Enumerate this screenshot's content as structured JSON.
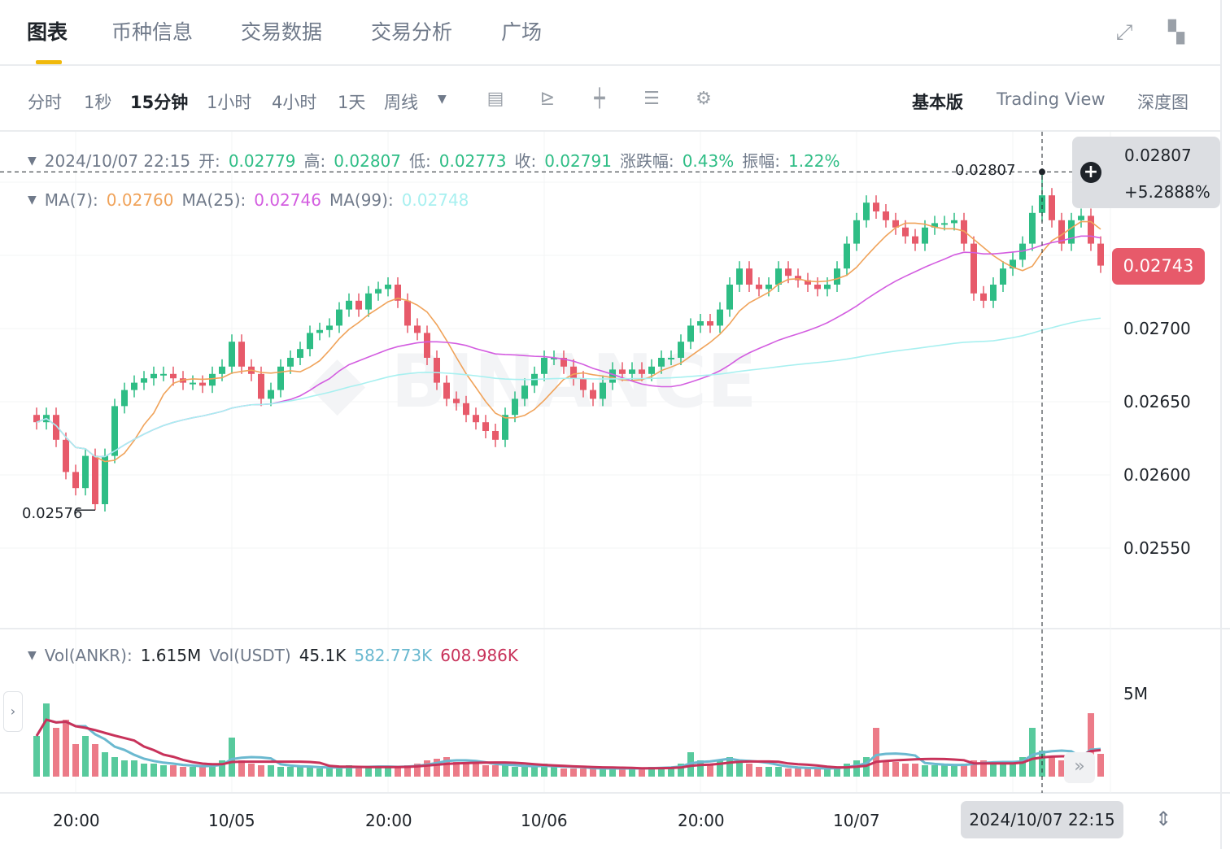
{
  "tabs": [
    {
      "label": "图表",
      "active": true
    },
    {
      "label": "币种信息"
    },
    {
      "label": "交易数据"
    },
    {
      "label": "交易分析"
    },
    {
      "label": "广场"
    }
  ],
  "top_icons": [
    "expand-icon",
    "widgets-icon"
  ],
  "accent_color": "#f0b90b",
  "intervals": [
    {
      "label": "分时"
    },
    {
      "label": "1秒"
    },
    {
      "label": "15分钟",
      "active": true
    },
    {
      "label": "1小时"
    },
    {
      "label": "4小时"
    },
    {
      "label": "1天"
    },
    {
      "label": "周线"
    }
  ],
  "tools": [
    "calendar-icon",
    "drawing-icon",
    "candle-type-icon",
    "indicator-icon",
    "gear-icon"
  ],
  "views": [
    {
      "label": "基本版",
      "active": true
    },
    {
      "label": "Trading View"
    },
    {
      "label": "深度图"
    }
  ],
  "ohlc": {
    "date": "2024/10/07 22:15",
    "open_label": "开:",
    "open": "0.02779",
    "high_label": "高:",
    "high": "0.02807",
    "low_label": "低:",
    "low": "0.02773",
    "close_label": "收:",
    "close": "0.02791",
    "change_label": "涨跌幅:",
    "change": "0.43%",
    "amp_label": "振幅:",
    "amp": "1.22%"
  },
  "ma": {
    "ma7_label": "MA(7):",
    "ma7": "0.02760",
    "ma25_label": "MA(25):",
    "ma25": "0.02746",
    "ma99_label": "MA(99):",
    "ma99": "0.02748"
  },
  "vol": {
    "label1": "Vol(ANKR):",
    "v1": "1.615M",
    "label2": "Vol(USDT)",
    "v2": "45.1K",
    "v3": "582.773K",
    "v4": "608.986K"
  },
  "colors": {
    "up": "#2ebd85",
    "down": "#e75a6a",
    "ma7": "#f0a35a",
    "ma25": "#d35de0",
    "ma99": "#a8f0f0",
    "vol_ma1": "#6bb9d0",
    "vol_ma2": "#c8325a"
  },
  "tooltip": {
    "price": "0.02807",
    "pct": "+5.2888%"
  },
  "current_price": "0.02743",
  "high_marker": "0.02807",
  "low_marker": "0.02576",
  "watermark": "BINANCE",
  "chart_data": {
    "type": "candlestick",
    "interval": "15m",
    "price_ticks": [
      "0.02700",
      "0.02650",
      "0.02600",
      "0.02550"
    ],
    "volume_ticks": [
      "5M"
    ],
    "time_ticks": [
      "20:00",
      "10/05",
      "20:00",
      "10/06",
      "20:00",
      "10/07"
    ],
    "crosshair_time": "2024/10/07 22:15",
    "grid": true,
    "closes": [
      0.02636,
      0.02641,
      0.02624,
      0.02602,
      0.02591,
      0.02613,
      0.0258,
      0.02613,
      0.02647,
      0.02658,
      0.02663,
      0.02666,
      0.02669,
      0.02669,
      0.02666,
      0.02663,
      0.02663,
      0.02661,
      0.02669,
      0.02674,
      0.02691,
      0.02674,
      0.02669,
      0.02652,
      0.02658,
      0.02674,
      0.0268,
      0.02686,
      0.02697,
      0.02699,
      0.02702,
      0.02713,
      0.02719,
      0.02713,
      0.02724,
      0.02727,
      0.0273,
      0.02719,
      0.02702,
      0.02697,
      0.0268,
      0.02663,
      0.02652,
      0.02649,
      0.02641,
      0.02636,
      0.0263,
      0.02624,
      0.02641,
      0.02652,
      0.02661,
      0.02669,
      0.0268,
      0.0268,
      0.02674,
      0.02666,
      0.02658,
      0.02652,
      0.02663,
      0.02672,
      0.02669,
      0.02672,
      0.02669,
      0.02674,
      0.0268,
      0.0268,
      0.02691,
      0.02702,
      0.02705,
      0.02702,
      0.02713,
      0.0273,
      0.02741,
      0.0273,
      0.02727,
      0.0273,
      0.02741,
      0.02736,
      0.02733,
      0.0273,
      0.02727,
      0.0273,
      0.02741,
      0.02758,
      0.02774,
      0.02786,
      0.0278,
      0.02774,
      0.02769,
      0.02763,
      0.02758,
      0.02769,
      0.02772,
      0.02772,
      0.02774,
      0.02758,
      0.02724,
      0.02719,
      0.0273,
      0.02741,
      0.02747,
      0.02758,
      0.02779,
      0.02791,
      0.02774,
      0.02758,
      0.02774,
      0.02777,
      0.02758,
      0.02743
    ],
    "highlight_index": 103,
    "highlight_candle": {
      "open": 0.02779,
      "high": 0.02807,
      "low": 0.02773,
      "close": 0.02791
    },
    "low_point": {
      "index": 6,
      "value": 0.02576
    },
    "volumes_m": [
      2.5,
      4.5,
      3,
      3.5,
      2,
      2.5,
      2,
      1.5,
      1.2,
      1,
      1,
      0.8,
      0.8,
      0.7,
      0.7,
      0.6,
      0.6,
      0.6,
      0.8,
      1,
      2.4,
      1,
      0.8,
      0.7,
      0.7,
      0.6,
      0.6,
      0.6,
      0.6,
      0.5,
      0.5,
      0.6,
      0.7,
      0.6,
      0.6,
      0.6,
      0.6,
      0.6,
      0.7,
      0.8,
      1,
      1.1,
      1.2,
      0.9,
      0.8,
      0.8,
      0.7,
      0.7,
      0.7,
      0.6,
      0.6,
      0.6,
      0.8,
      0.6,
      0.5,
      0.5,
      0.5,
      0.5,
      0.5,
      0.5,
      0.5,
      0.5,
      0.5,
      0.6,
      0.6,
      0.6,
      0.8,
      1.5,
      1,
      0.8,
      1,
      1.2,
      1,
      0.8,
      0.6,
      0.6,
      0.6,
      0.5,
      0.5,
      0.5,
      0.5,
      0.5,
      0.6,
      0.8,
      1,
      1.2,
      3,
      1,
      0.9,
      0.8,
      0.8,
      0.7,
      0.7,
      0.7,
      0.7,
      0.8,
      1,
      1,
      0.9,
      0.8,
      0.8,
      1.2,
      3,
      1.6,
      1.2,
      1,
      1,
      1.2,
      3.9,
      1.4
    ]
  }
}
